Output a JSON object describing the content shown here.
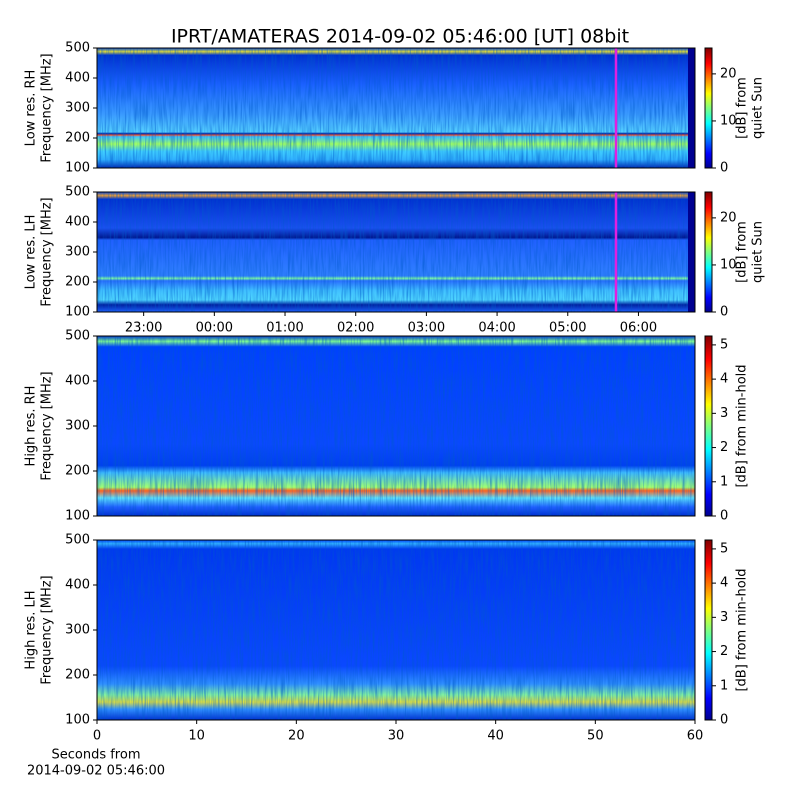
{
  "chart_data": [
    {
      "type": "heatmap",
      "title": "IPRT/AMATERAS 2014-09-02 05:46:00 [UT]   08bit",
      "ylabel": [
        "Low res. RH",
        "Frequency [MHz]"
      ],
      "ylim": [
        100,
        500
      ],
      "yticks": [
        100,
        200,
        300,
        400,
        500
      ],
      "colorbar": {
        "label": [
          "[dB] from",
          "quiet Sun"
        ],
        "lim": [
          0,
          25.5
        ],
        "ticks": [
          0,
          10,
          20
        ]
      }
    },
    {
      "type": "heatmap",
      "ylabel": [
        "Low res. LH",
        "Frequency [MHz]"
      ],
      "ylim": [
        100,
        500
      ],
      "yticks": [
        100,
        200,
        300,
        400,
        500
      ],
      "xlim": [
        22.34,
        30.8
      ],
      "xticks": [
        {
          "value": 23,
          "label": "23:00"
        },
        {
          "value": 24,
          "label": "00:00"
        },
        {
          "value": 25,
          "label": "01:00"
        },
        {
          "value": 26,
          "label": "02:00"
        },
        {
          "value": 27,
          "label": "03:00"
        },
        {
          "value": 28,
          "label": "04:00"
        },
        {
          "value": 29,
          "label": "05:00"
        },
        {
          "value": 30,
          "label": "06:00"
        }
      ],
      "colorbar": {
        "label": [
          "[dB] from",
          "quiet Sun"
        ],
        "lim": [
          0,
          25.5
        ],
        "ticks": [
          0,
          10,
          20
        ]
      }
    },
    {
      "type": "heatmap",
      "ylabel": [
        "High res. RH",
        "Frequency [MHz]"
      ],
      "ylim": [
        100,
        500
      ],
      "yticks": [
        100,
        200,
        300,
        400,
        500
      ],
      "xlim": [
        0,
        60
      ],
      "colorbar": {
        "label": [
          "[dB] from min-hold"
        ],
        "lim": [
          0,
          5.26
        ],
        "ticks": [
          0,
          1,
          2,
          3,
          4,
          5
        ]
      }
    },
    {
      "type": "heatmap",
      "ylabel": [
        "High res. LH",
        "Frequency [MHz]"
      ],
      "ylim": [
        100,
        500
      ],
      "yticks": [
        100,
        200,
        300,
        400,
        500
      ],
      "xlim": [
        0,
        60
      ],
      "xticks": [
        0,
        10,
        20,
        30,
        40,
        50,
        60
      ],
      "xlabel": [
        "Seconds from",
        "2014-09-02 05:46:00"
      ],
      "colorbar": {
        "label": [
          "[dB] from min-hold"
        ],
        "lim": [
          0,
          5.26
        ],
        "ticks": [
          0,
          1,
          2,
          3,
          4,
          5
        ]
      }
    }
  ]
}
